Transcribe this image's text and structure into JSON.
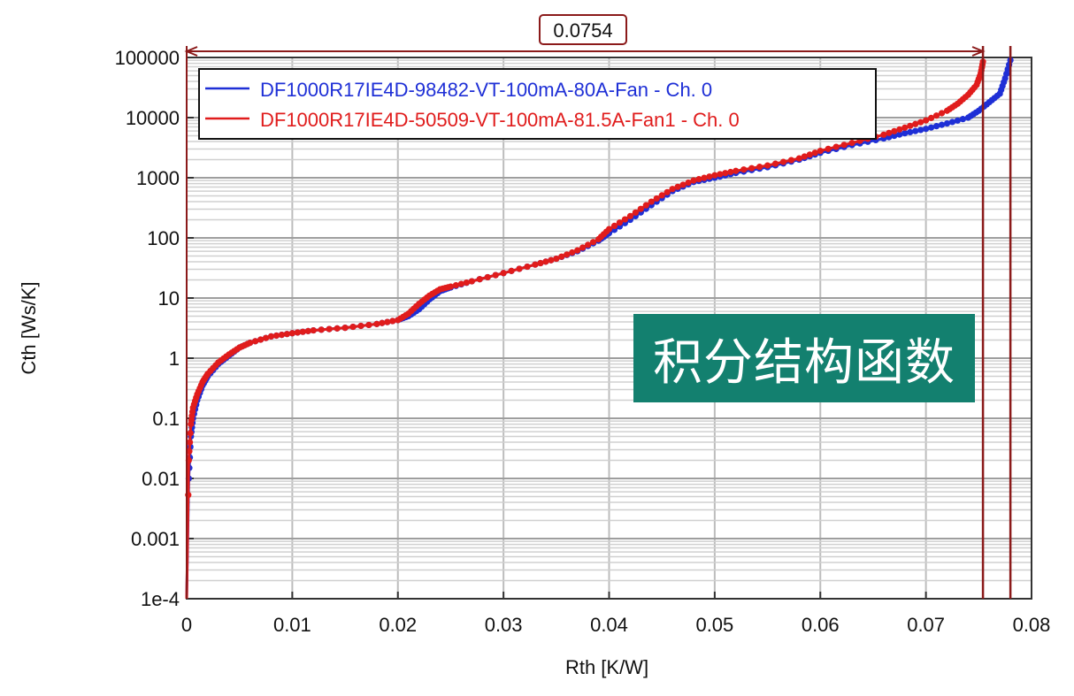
{
  "overlay_text": "积分结构函数",
  "colors": {
    "series1": "#1e2fd6",
    "series2": "#e01c1c",
    "marker": "#8b1a1a",
    "overlay_bg": "#13806f",
    "grid": "#bdbdbd"
  },
  "chart_data": {
    "type": "line",
    "xlabel": "Rth  [K/W]",
    "ylabel": "Cth  [Ws/K]",
    "xlim": [
      0,
      0.08
    ],
    "ylim": [
      0.0001,
      100000
    ],
    "yscale": "log",
    "grid": true,
    "legend_position": "top-left",
    "x_ticks": [
      "0",
      "0.01",
      "0.02",
      "0.03",
      "0.04",
      "0.05",
      "0.06",
      "0.07",
      "0.08"
    ],
    "y_ticks": [
      "1e-4",
      "0.001",
      "0.01",
      "0.1",
      "1",
      "10",
      "100",
      "1000",
      "10000",
      "100000"
    ],
    "annotation": {
      "label": "0.0754",
      "x_start": 0,
      "x_end": 0.0754,
      "marker_lines": [
        0.0754,
        0.078
      ]
    },
    "series": [
      {
        "name": "DF1000R17IE4D-98482-VT-100mA-80A-Fan - Ch. 0",
        "color": "#1e2fd6",
        "x": [
          0,
          0.0002,
          0.0004,
          0.0006,
          0.001,
          0.0015,
          0.002,
          0.003,
          0.004,
          0.005,
          0.006,
          0.008,
          0.01,
          0.012,
          0.015,
          0.018,
          0.02,
          0.021,
          0.022,
          0.023,
          0.024,
          0.025,
          0.027,
          0.03,
          0.033,
          0.035,
          0.037,
          0.039,
          0.04,
          0.042,
          0.044,
          0.046,
          0.048,
          0.05,
          0.052,
          0.055,
          0.058,
          0.06,
          0.063,
          0.066,
          0.068,
          0.07,
          0.072,
          0.074,
          0.075,
          0.076,
          0.077,
          0.0775,
          0.078
        ],
        "y": [
          0.0001,
          0.01,
          0.05,
          0.1,
          0.2,
          0.35,
          0.5,
          0.8,
          1.1,
          1.5,
          1.8,
          2.3,
          2.6,
          2.9,
          3.2,
          3.7,
          4.3,
          5.0,
          6.5,
          9.5,
          13,
          15,
          19,
          26,
          36,
          45,
          60,
          90,
          120,
          200,
          350,
          600,
          850,
          1000,
          1200,
          1500,
          2000,
          2600,
          3500,
          4500,
          5500,
          6500,
          8000,
          10000,
          13000,
          18000,
          25000,
          45000,
          90000
        ]
      },
      {
        "name": "DF1000R17IE4D-50509-VT-100mA-81.5A-Fan1 - Ch. 0",
        "color": "#e01c1c",
        "x": [
          0,
          0.0002,
          0.0004,
          0.0006,
          0.001,
          0.0015,
          0.002,
          0.003,
          0.004,
          0.005,
          0.006,
          0.008,
          0.01,
          0.012,
          0.015,
          0.018,
          0.02,
          0.021,
          0.022,
          0.023,
          0.024,
          0.025,
          0.027,
          0.03,
          0.033,
          0.035,
          0.037,
          0.039,
          0.04,
          0.042,
          0.044,
          0.046,
          0.048,
          0.05,
          0.052,
          0.055,
          0.058,
          0.06,
          0.063,
          0.066,
          0.068,
          0.07,
          0.072,
          0.073,
          0.074,
          0.0748,
          0.0752,
          0.0754
        ],
        "y": [
          0.0001,
          0.02,
          0.08,
          0.15,
          0.25,
          0.4,
          0.55,
          0.85,
          1.15,
          1.5,
          1.8,
          2.3,
          2.6,
          2.9,
          3.2,
          3.7,
          4.3,
          5.5,
          8,
          11,
          14,
          15.5,
          19,
          26,
          36,
          45,
          62,
          95,
          140,
          230,
          400,
          650,
          900,
          1100,
          1300,
          1600,
          2100,
          2800,
          3800,
          5200,
          6800,
          9000,
          13000,
          17000,
          24000,
          35000,
          55000,
          85000
        ]
      }
    ]
  }
}
